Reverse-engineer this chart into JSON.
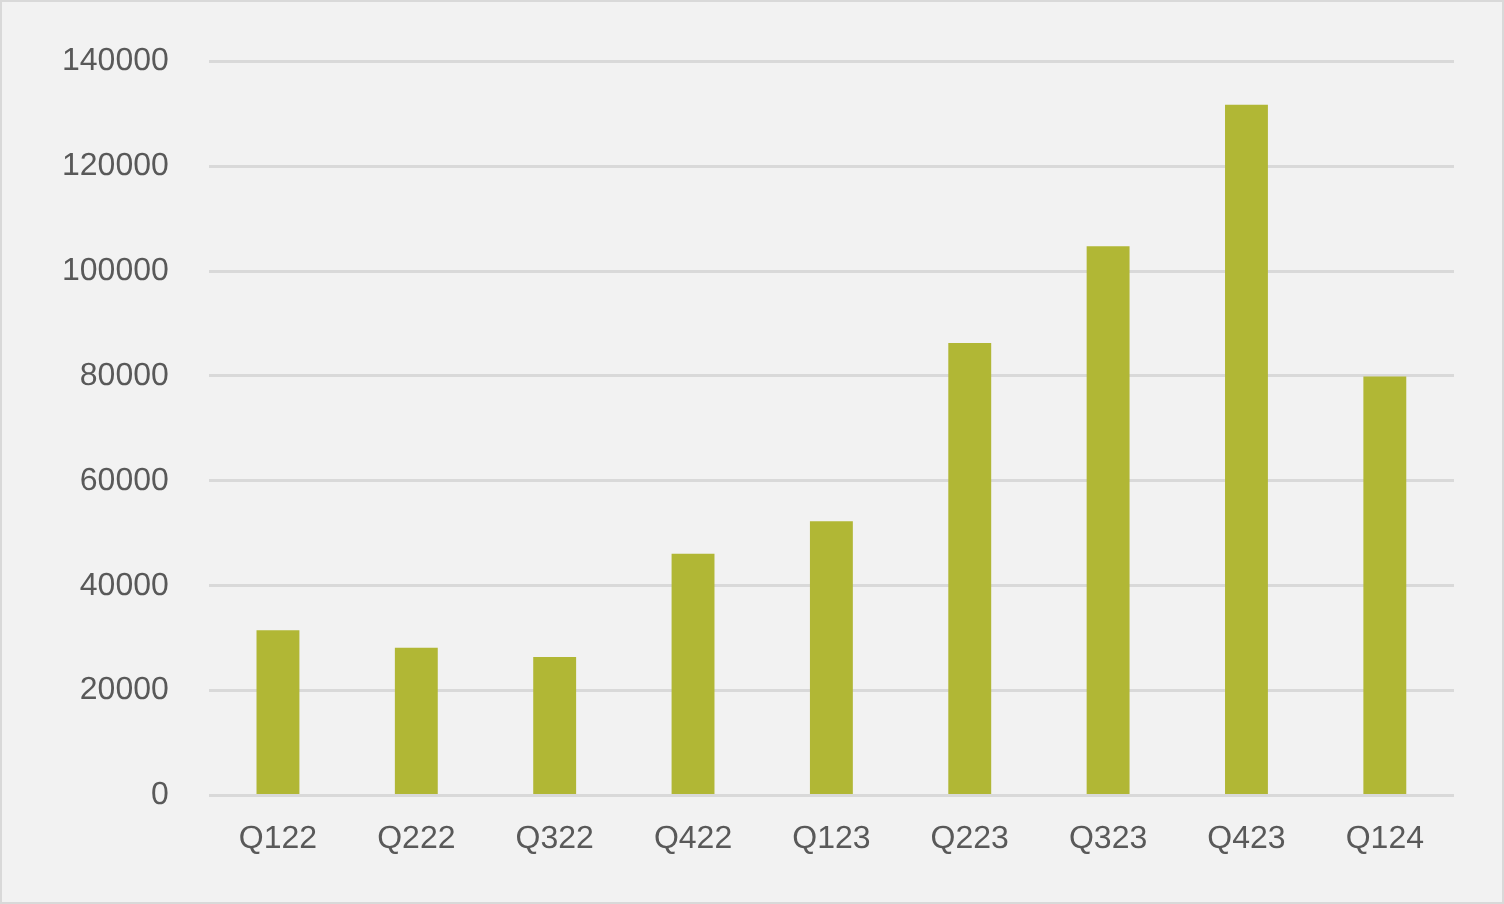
{
  "chart_data": {
    "type": "bar",
    "categories": [
      "Q122",
      "Q222",
      "Q322",
      "Q422",
      "Q123",
      "Q223",
      "Q323",
      "Q423",
      "Q124"
    ],
    "values": [
      31500,
      28200,
      26400,
      46100,
      52300,
      86300,
      104700,
      131700,
      79900
    ],
    "color": "#b1b735",
    "ylim": [
      0,
      140000
    ],
    "yticks": [
      0,
      20000,
      40000,
      60000,
      80000,
      100000,
      120000,
      140000
    ],
    "grid": "y",
    "legend": false
  }
}
